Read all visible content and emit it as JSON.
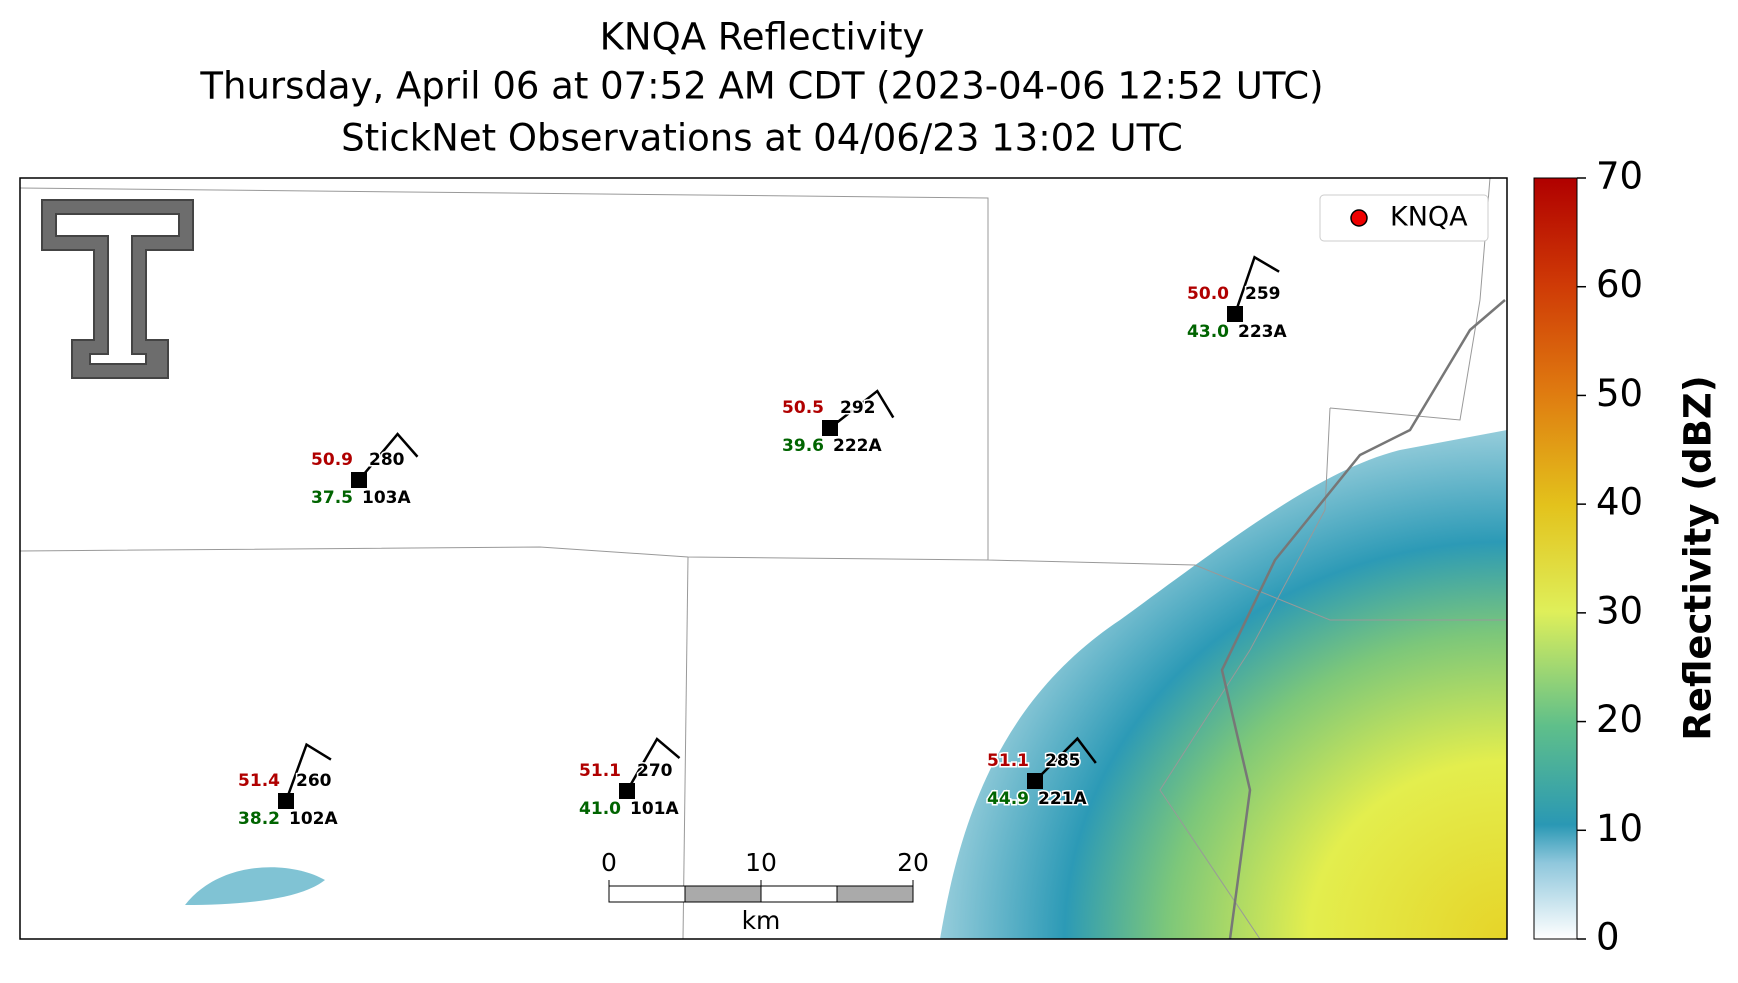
{
  "title": [
    "KNQA Reflectivity",
    "Thursday, April 06 at 07:52 AM CDT (2023-04-06 12:52 UTC)",
    "StickNet Observations at 04/06/23 13:02 UTC"
  ],
  "legend": {
    "label": "KNQA"
  },
  "stations": [
    {
      "id": "103A",
      "temperature": 50.9,
      "dewpoint": 37.5,
      "wind_direction": 280
    },
    {
      "id": "222A",
      "temperature": 50.5,
      "dewpoint": 39.6,
      "wind_direction": 292
    },
    {
      "id": "223A",
      "temperature": 50.0,
      "dewpoint": 43.0,
      "wind_direction": 259
    },
    {
      "id": "102A",
      "temperature": 51.4,
      "dewpoint": 38.2,
      "wind_direction": 260
    },
    {
      "id": "101A",
      "temperature": 51.1,
      "dewpoint": 41.0,
      "wind_direction": 270
    },
    {
      "id": "221A",
      "temperature": 51.1,
      "dewpoint": 44.9,
      "wind_direction": 285
    }
  ],
  "colorbar": {
    "label": "Reflectivity (dBZ)",
    "lim": [
      0,
      70
    ],
    "ticks": [
      0,
      10,
      20,
      30,
      40,
      50,
      60,
      70
    ]
  },
  "scale_bar": {
    "lim": [
      0,
      20
    ],
    "ticks": [
      0,
      10,
      20
    ],
    "unit": "km"
  }
}
